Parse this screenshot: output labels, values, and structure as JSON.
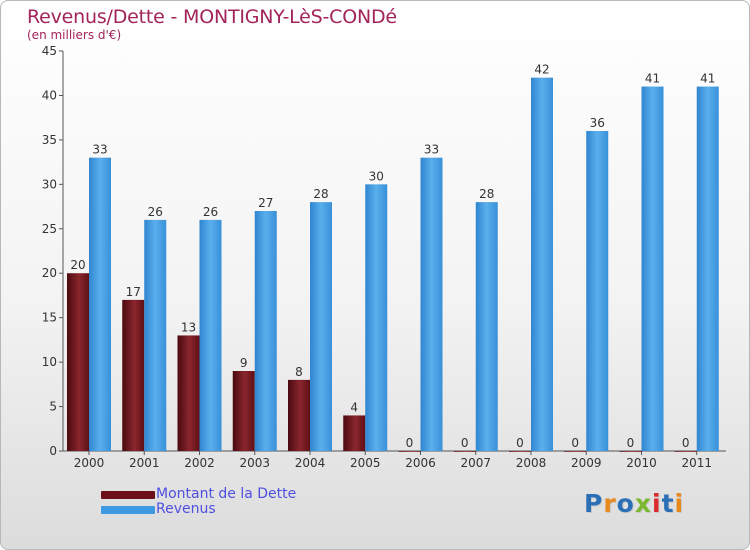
{
  "header": {
    "title": "Revenus/Dette - MONTIGNY-LèS-CONDé",
    "subtitle": "(en milliers d'€)"
  },
  "chart_data": {
    "type": "bar",
    "categories": [
      "2000",
      "2001",
      "2002",
      "2003",
      "2004",
      "2005",
      "2006",
      "2007",
      "2008",
      "2009",
      "2010",
      "2011"
    ],
    "series": [
      {
        "name": "Montant de la Dette",
        "values": [
          20,
          17,
          13,
          9,
          8,
          4,
          0,
          0,
          0,
          0,
          0,
          0
        ],
        "color": "#7a1e26"
      },
      {
        "name": "Revenus",
        "values": [
          33,
          26,
          26,
          27,
          28,
          30,
          33,
          28,
          42,
          36,
          41,
          41
        ],
        "color": "#4aa3e6"
      }
    ],
    "ylim": [
      0,
      45
    ],
    "yticks": [
      0,
      5,
      10,
      15,
      20,
      25,
      30,
      35,
      40,
      45
    ],
    "grid": false,
    "legend_position": "bottom-left"
  },
  "legend": {
    "items": [
      {
        "label": "Montant de la Dette",
        "color": "#6b1016"
      },
      {
        "label": "Revenus",
        "color": "#3d9be3"
      }
    ]
  },
  "logo": {
    "text": "Proxiti",
    "letter_colors": [
      "#2b6fb6",
      "#e8891d",
      "#2b6fb6",
      "#7cb82f",
      "#d92b2b",
      "#2b6fb6",
      "#e8891d"
    ]
  }
}
